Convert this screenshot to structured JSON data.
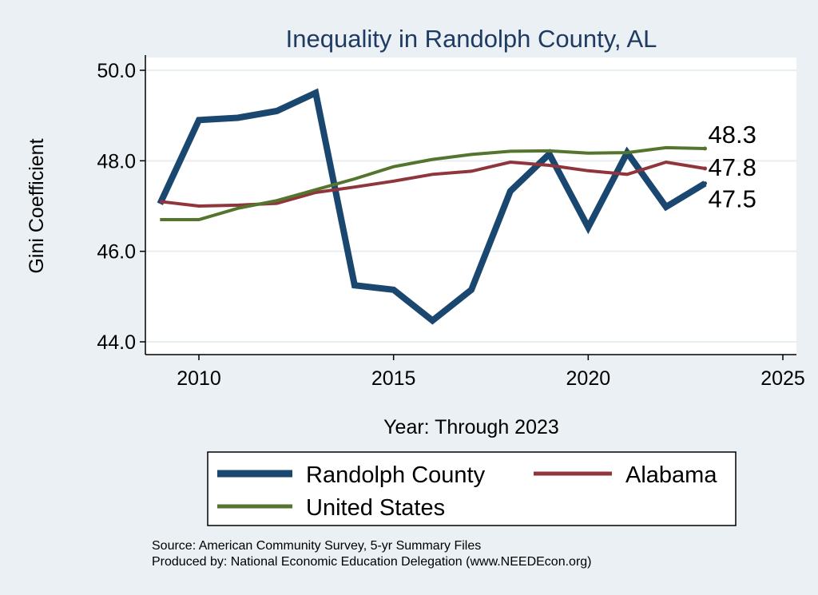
{
  "colors": {
    "background": "#eaf0f3",
    "plot_background": "#ffffff",
    "grid": "#e7eef1",
    "randolph": "#1a476f",
    "alabama": "#90353b",
    "united_states": "#55752f",
    "title": "#1f3b63"
  },
  "chart_data": {
    "type": "line",
    "title": "Inequality in Randolph County, AL",
    "xlabel": "Year: Through 2023",
    "ylabel": "Gini Coefficient",
    "xlim": [
      2008.5,
      2025.5
    ],
    "ylim": [
      43.8,
      50.3
    ],
    "xticks": [
      2010,
      2015,
      2020,
      2025
    ],
    "xtick_labels": [
      "2010",
      "2015",
      "2020",
      "2025"
    ],
    "yticks": [
      44,
      46,
      48,
      50
    ],
    "ytick_labels": [
      "44.0",
      "46.0",
      "48.0",
      "50.0"
    ],
    "grid": true,
    "x": [
      2009,
      2010,
      2011,
      2012,
      2013,
      2014,
      2015,
      2016,
      2017,
      2018,
      2019,
      2020,
      2021,
      2022,
      2023
    ],
    "series": [
      {
        "name": "Randolph County",
        "color_key": "randolph",
        "width": "thick",
        "values": [
          47.05,
          48.9,
          48.95,
          49.1,
          49.5,
          45.25,
          45.15,
          44.47,
          45.15,
          47.33,
          48.15,
          46.53,
          48.18,
          46.98,
          47.5
        ],
        "end_label": "47.5"
      },
      {
        "name": "Alabama",
        "color_key": "alabama",
        "width": "thin",
        "values": [
          47.1,
          47.0,
          47.02,
          47.06,
          47.3,
          47.42,
          47.55,
          47.7,
          47.77,
          47.97,
          47.9,
          47.78,
          47.7,
          47.97,
          47.83
        ],
        "end_label": "47.8"
      },
      {
        "name": "United States",
        "color_key": "united_states",
        "width": "thin",
        "values": [
          46.7,
          46.7,
          46.95,
          47.12,
          47.36,
          47.6,
          47.87,
          48.03,
          48.14,
          48.21,
          48.22,
          48.17,
          48.18,
          48.29,
          48.27
        ],
        "end_label": "48.3"
      }
    ],
    "legend": {
      "position": "bottom",
      "entries": [
        "Randolph County",
        "Alabama",
        "United States"
      ]
    }
  },
  "notes": {
    "source": "Source: American Community Survey, 5-yr Summary Files",
    "produced_by": "Produced by: National Economic Education Delegation (www.NEEDEcon.org)"
  }
}
